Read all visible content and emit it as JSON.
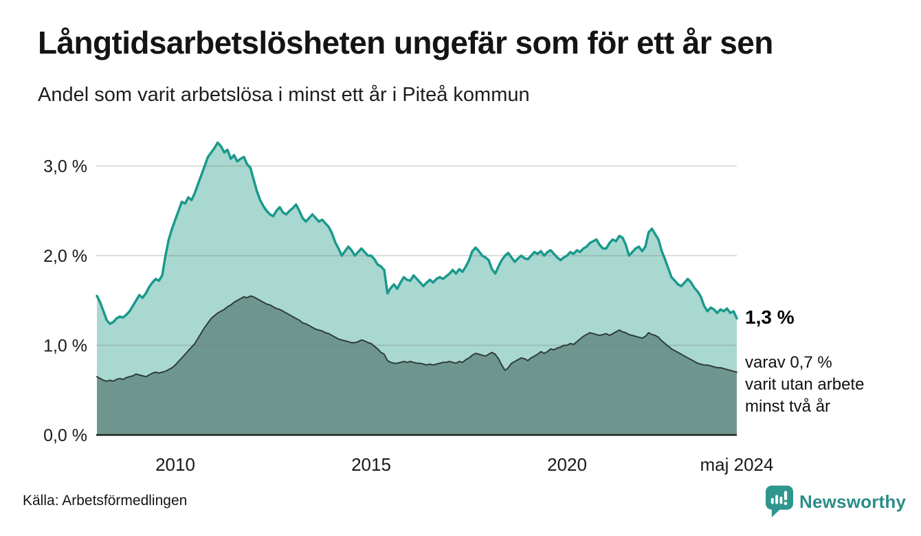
{
  "branding": {
    "name": "Newsworthy",
    "color": "#2b8d87",
    "icon": "bar-chart-speech-bubble-icon"
  },
  "chart_data": {
    "type": "area",
    "title": "Långtidsarbetslösheten ungefär som för ett år sen",
    "subtitle": "Andel som varit arbetslösa i minst ett år i Piteå kommun",
    "source": "Källa: Arbetsförmedlingen",
    "unit": "%",
    "frequency": "monthly",
    "x_start_year": 2008,
    "x_end_label": "maj 2024",
    "ylim": [
      0,
      3.4
    ],
    "grid": true,
    "legend_position": "none",
    "y_ticks": [
      {
        "label": "0,0 %",
        "v": 0
      },
      {
        "label": "1,0 %",
        "v": 1
      },
      {
        "label": "2,0 %",
        "v": 2
      },
      {
        "label": "3,0 %",
        "v": 3
      }
    ],
    "x_ticks": [
      {
        "label": "2010",
        "t": 2010.0
      },
      {
        "label": "2015",
        "t": 2015.0
      },
      {
        "label": "2020",
        "t": 2020.0
      },
      {
        "label": "maj 2024",
        "t": 2024.333
      }
    ],
    "annotation": {
      "value_label": "1,3 %",
      "sub_lines": [
        "varav 0,7 %",
        "varit utan arbete",
        "minst två år"
      ]
    },
    "series": [
      {
        "id": "minst-ett-ar",
        "name": "Andel arbetslösa minst ett år",
        "fill": "#a9d8d0",
        "line": "#1a998c",
        "line_width": 3.5,
        "end_value": 1.3,
        "values": [
          1.55,
          1.48,
          1.38,
          1.28,
          1.24,
          1.26,
          1.3,
          1.32,
          1.31,
          1.34,
          1.38,
          1.44,
          1.5,
          1.56,
          1.53,
          1.58,
          1.65,
          1.7,
          1.74,
          1.72,
          1.78,
          2.0,
          2.18,
          2.3,
          2.4,
          2.5,
          2.6,
          2.58,
          2.65,
          2.62,
          2.7,
          2.8,
          2.9,
          3.0,
          3.1,
          3.15,
          3.2,
          3.26,
          3.22,
          3.15,
          3.18,
          3.08,
          3.12,
          3.05,
          3.08,
          3.1,
          3.02,
          2.98,
          2.85,
          2.72,
          2.62,
          2.55,
          2.5,
          2.46,
          2.44,
          2.5,
          2.54,
          2.48,
          2.46,
          2.5,
          2.53,
          2.57,
          2.5,
          2.42,
          2.38,
          2.42,
          2.46,
          2.42,
          2.38,
          2.4,
          2.36,
          2.32,
          2.25,
          2.15,
          2.08,
          2.0,
          2.05,
          2.1,
          2.06,
          2.0,
          2.04,
          2.08,
          2.04,
          2.0,
          2.0,
          1.96,
          1.9,
          1.88,
          1.84,
          1.58,
          1.64,
          1.68,
          1.63,
          1.7,
          1.76,
          1.73,
          1.72,
          1.78,
          1.74,
          1.7,
          1.66,
          1.7,
          1.73,
          1.7,
          1.74,
          1.76,
          1.74,
          1.77,
          1.8,
          1.84,
          1.8,
          1.85,
          1.82,
          1.88,
          1.95,
          2.05,
          2.09,
          2.05,
          2.0,
          1.98,
          1.95,
          1.85,
          1.8,
          1.88,
          1.95,
          2.0,
          2.03,
          1.98,
          1.93,
          1.97,
          2.0,
          1.97,
          1.96,
          2.0,
          2.04,
          2.02,
          2.05,
          2.0,
          2.04,
          2.06,
          2.02,
          1.98,
          1.95,
          1.98,
          2.0,
          2.04,
          2.02,
          2.06,
          2.04,
          2.08,
          2.1,
          2.14,
          2.16,
          2.18,
          2.12,
          2.08,
          2.08,
          2.14,
          2.18,
          2.16,
          2.22,
          2.2,
          2.12,
          2.0,
          2.04,
          2.08,
          2.1,
          2.05,
          2.1,
          2.26,
          2.3,
          2.24,
          2.18,
          2.05,
          1.96,
          1.86,
          1.76,
          1.72,
          1.68,
          1.66,
          1.7,
          1.74,
          1.7,
          1.64,
          1.6,
          1.54,
          1.44,
          1.38,
          1.42,
          1.4,
          1.36,
          1.4,
          1.38,
          1.41,
          1.36,
          1.38,
          1.3
        ]
      },
      {
        "id": "minst-tva-ar",
        "name": "Andel arbetslösa minst två år",
        "fill": "#6e968e",
        "line": "#2e3d3a",
        "line_width": 2,
        "end_value": 0.7,
        "values": [
          0.65,
          0.63,
          0.61,
          0.6,
          0.61,
          0.6,
          0.62,
          0.63,
          0.62,
          0.64,
          0.65,
          0.66,
          0.68,
          0.67,
          0.66,
          0.65,
          0.67,
          0.69,
          0.7,
          0.69,
          0.7,
          0.71,
          0.73,
          0.75,
          0.78,
          0.82,
          0.86,
          0.9,
          0.94,
          0.98,
          1.02,
          1.08,
          1.14,
          1.2,
          1.25,
          1.3,
          1.33,
          1.36,
          1.38,
          1.4,
          1.43,
          1.45,
          1.48,
          1.5,
          1.52,
          1.54,
          1.53,
          1.55,
          1.54,
          1.52,
          1.5,
          1.48,
          1.46,
          1.45,
          1.43,
          1.41,
          1.4,
          1.38,
          1.36,
          1.34,
          1.32,
          1.3,
          1.28,
          1.25,
          1.24,
          1.22,
          1.2,
          1.18,
          1.17,
          1.16,
          1.14,
          1.13,
          1.11,
          1.09,
          1.07,
          1.06,
          1.05,
          1.04,
          1.03,
          1.03,
          1.04,
          1.06,
          1.05,
          1.03,
          1.02,
          0.99,
          0.96,
          0.92,
          0.9,
          0.83,
          0.81,
          0.8,
          0.8,
          0.81,
          0.82,
          0.81,
          0.82,
          0.81,
          0.8,
          0.8,
          0.79,
          0.78,
          0.79,
          0.78,
          0.79,
          0.8,
          0.81,
          0.81,
          0.82,
          0.81,
          0.8,
          0.82,
          0.81,
          0.84,
          0.86,
          0.89,
          0.91,
          0.9,
          0.89,
          0.88,
          0.9,
          0.92,
          0.9,
          0.85,
          0.78,
          0.72,
          0.75,
          0.8,
          0.82,
          0.84,
          0.86,
          0.85,
          0.83,
          0.86,
          0.88,
          0.9,
          0.93,
          0.91,
          0.93,
          0.96,
          0.95,
          0.97,
          0.98,
          1.0,
          1.0,
          1.02,
          1.01,
          1.04,
          1.07,
          1.1,
          1.12,
          1.14,
          1.13,
          1.12,
          1.11,
          1.12,
          1.13,
          1.11,
          1.13,
          1.15,
          1.17,
          1.15,
          1.14,
          1.12,
          1.11,
          1.1,
          1.09,
          1.08,
          1.1,
          1.14,
          1.12,
          1.11,
          1.09,
          1.05,
          1.02,
          0.99,
          0.96,
          0.94,
          0.92,
          0.9,
          0.88,
          0.86,
          0.84,
          0.82,
          0.8,
          0.79,
          0.78,
          0.78,
          0.77,
          0.76,
          0.75,
          0.75,
          0.74,
          0.73,
          0.72,
          0.71,
          0.7
        ]
      }
    ]
  }
}
